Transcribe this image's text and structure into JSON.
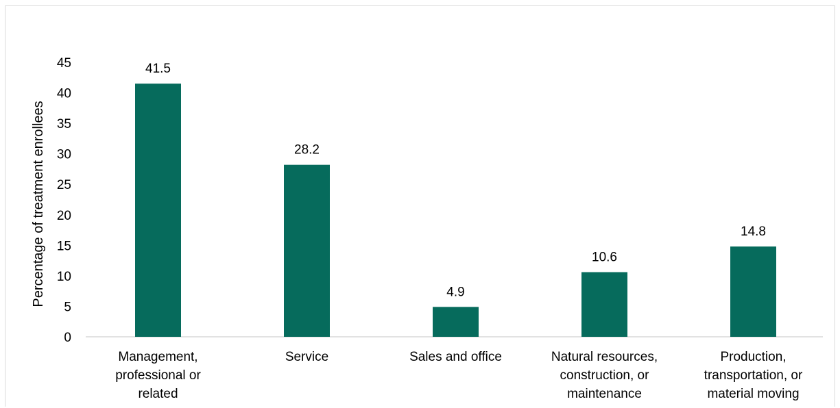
{
  "chart_data": {
    "type": "bar",
    "categories": [
      [
        "Management,",
        "professional or",
        "related"
      ],
      [
        "Service"
      ],
      [
        "Sales and office"
      ],
      [
        "Natural resources,",
        "construction, or",
        "maintenance"
      ],
      [
        "Production,",
        "transportation, or",
        "material moving"
      ]
    ],
    "values": [
      41.5,
      28.2,
      4.9,
      10.6,
      14.8
    ],
    "data_labels": [
      "41.5",
      "28.2",
      "4.9",
      "10.6",
      "14.8"
    ],
    "title": "",
    "xlabel": "",
    "ylabel": "Percentage of treatment enrollees",
    "ylim": [
      0,
      45
    ],
    "yticks": [
      0,
      5,
      10,
      15,
      20,
      25,
      30,
      35,
      40,
      45
    ],
    "grid": false,
    "legend": "none",
    "bar_color": "#066B5C",
    "axis_color": "#d9d9d9"
  }
}
